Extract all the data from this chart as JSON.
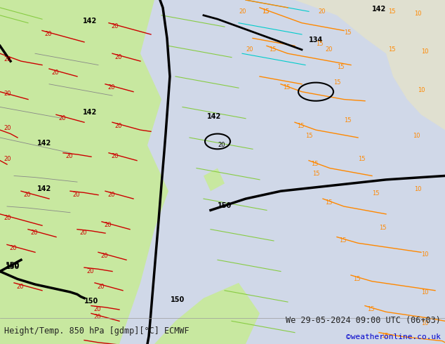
{
  "title_left": "Height/Temp. 850 hPa [gdmp][°C] ECMWF",
  "title_right": "We 29-05-2024 09:00 UTC (06+03)",
  "credit": "©weatheronline.co.uk",
  "bg_color": "#d0d8e8",
  "land_color_main": "#c8e8a0",
  "land_color_alt": "#e8e8e8",
  "contour_color_black": "#000000",
  "contour_color_orange": "#ff8800",
  "contour_color_red": "#cc0000",
  "contour_color_green": "#44bb44",
  "contour_color_cyan": "#00cccc",
  "text_color_main": "#222222",
  "text_color_credit": "#0000cc",
  "fig_width": 6.34,
  "fig_height": 4.9,
  "dpi": 100
}
